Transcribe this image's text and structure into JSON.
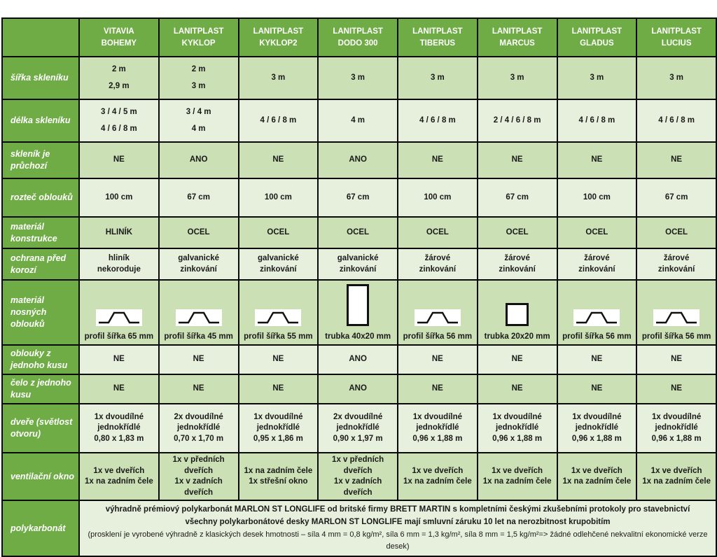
{
  "colors": {
    "header_green": "#6FAC46",
    "row_medium": "#CBE0B4",
    "row_light": "#E7F0DC",
    "border": "#0a0a0a",
    "text": "#1a1a1a"
  },
  "table": {
    "columns": [
      {
        "line1": "VITAVIA",
        "line2": "BOHEMY"
      },
      {
        "line1": "LANITPLAST",
        "line2": "KYKLOP"
      },
      {
        "line1": "LANITPLAST",
        "line2": "KYKLOP2"
      },
      {
        "line1": "LANITPLAST",
        "line2": "DODO 300"
      },
      {
        "line1": "LANITPLAST",
        "line2": "TIBERUS"
      },
      {
        "line1": "LANITPLAST",
        "line2": "MARCUS"
      },
      {
        "line1": "LANITPLAST",
        "line2": "GLADUS"
      },
      {
        "line1": "LANITPLAST",
        "line2": "LUCIUS"
      }
    ],
    "rows": [
      {
        "id": "sirka",
        "label": "šířka skleníku",
        "shade": "medium",
        "spread": true,
        "cells": [
          [
            "2 m",
            "2,9 m"
          ],
          [
            "2 m",
            "3 m"
          ],
          [
            "3 m"
          ],
          [
            "3 m"
          ],
          [
            "3 m"
          ],
          [
            "3 m"
          ],
          [
            "3 m"
          ],
          [
            "3 m"
          ]
        ]
      },
      {
        "id": "delka",
        "label": "délka skleníku",
        "shade": "light",
        "spread": true,
        "cells": [
          [
            "3 / 4 / 5 m",
            "4 / 6 / 8 m"
          ],
          [
            "3 / 4 m",
            "4 m"
          ],
          [
            "4 / 6 / 8 m"
          ],
          [
            "4 m"
          ],
          [
            "4 / 6 / 8 m"
          ],
          [
            "2 / 4 / 6 / 8 m"
          ],
          [
            "4 / 6 / 8 m"
          ],
          [
            "4 / 6 / 8 m"
          ]
        ]
      },
      {
        "id": "pruchozi",
        "label": "skleník je průchozí",
        "shade": "medium",
        "cells": [
          [
            "NE"
          ],
          [
            "ANO"
          ],
          [
            "NE"
          ],
          [
            "ANO"
          ],
          [
            "NE"
          ],
          [
            "NE"
          ],
          [
            "NE"
          ],
          [
            "NE"
          ]
        ]
      },
      {
        "id": "roztec",
        "label": "rozteč oblouků",
        "shade": "light",
        "cells": [
          [
            "100 cm"
          ],
          [
            "67 cm"
          ],
          [
            "100 cm"
          ],
          [
            "67 cm"
          ],
          [
            "100 cm"
          ],
          [
            "67 cm"
          ],
          [
            "100 cm"
          ],
          [
            "67 cm"
          ]
        ]
      },
      {
        "id": "konstrukce",
        "label": "materiál konstrukce",
        "shade": "medium",
        "cells": [
          [
            "HLINÍK"
          ],
          [
            "OCEL"
          ],
          [
            "OCEL"
          ],
          [
            "OCEL"
          ],
          [
            "OCEL"
          ],
          [
            "OCEL"
          ],
          [
            "OCEL"
          ],
          [
            "OCEL"
          ]
        ]
      },
      {
        "id": "ochrana",
        "label": "ochrana před korozí",
        "shade": "light",
        "cells": [
          [
            "hliník",
            "nekoroduje"
          ],
          [
            "galvanické",
            "zinkování"
          ],
          [
            "galvanické",
            "zinkování"
          ],
          [
            "galvanické",
            "zinkování"
          ],
          [
            "žárové",
            "zinkování"
          ],
          [
            "žárové",
            "zinkování"
          ],
          [
            "žárové",
            "zinkování"
          ],
          [
            "žárové",
            "zinkování"
          ]
        ]
      },
      {
        "id": "nosne",
        "label": "materiál nosných oblouků",
        "shade": "medium",
        "profile": true,
        "cells": [
          {
            "icon": "omega-profile-icon",
            "caption": "profil šířka 65 mm"
          },
          {
            "icon": "omega-profile-icon",
            "caption": "profil šířka 45 mm"
          },
          {
            "icon": "omega-profile-icon",
            "caption": "profil šířka 55 mm"
          },
          {
            "icon": "tube-tall-icon",
            "caption": "trubka 40x20 mm"
          },
          {
            "icon": "omega-profile-icon",
            "caption": "profil šířka 56 mm"
          },
          {
            "icon": "tube-square-icon",
            "caption": "trubka 20x20 mm"
          },
          {
            "icon": "omega-profile-icon",
            "caption": "profil šířka 56 mm"
          },
          {
            "icon": "omega-profile-icon",
            "caption": "profil šířka 56 mm"
          }
        ]
      },
      {
        "id": "oblouky",
        "label": "oblouky z jednoho kusu",
        "shade": "light",
        "cells": [
          [
            "NE"
          ],
          [
            "NE"
          ],
          [
            "NE"
          ],
          [
            "ANO"
          ],
          [
            "NE"
          ],
          [
            "NE"
          ],
          [
            "NE"
          ],
          [
            "NE"
          ]
        ]
      },
      {
        "id": "celo",
        "label": "čelo z jednoho kusu",
        "shade": "medium",
        "cells": [
          [
            "NE"
          ],
          [
            "NE"
          ],
          [
            "NE"
          ],
          [
            "ANO"
          ],
          [
            "NE"
          ],
          [
            "NE"
          ],
          [
            "NE"
          ],
          [
            "NE"
          ]
        ]
      },
      {
        "id": "dvere",
        "label": "dveře (světlost otvoru)",
        "shade": "light",
        "cells": [
          [
            "1x dvoudílné",
            "jednokřídlé",
            "0,80 x 1,83 m"
          ],
          [
            "2x dvoudílné",
            "jednokřídlé",
            "0,70 x 1,70 m"
          ],
          [
            "1x dvoudílné",
            "jednokřídlé",
            "0,95 x 1,86 m"
          ],
          [
            "2x dvoudílné",
            "jednokřídlé",
            "0,90 x 1,97 m"
          ],
          [
            "1x dvoudílné",
            "jednokřídlé",
            "0,96 x 1,88 m"
          ],
          [
            "1x dvoudílné",
            "jednokřídlé",
            "0,96 x 1,88 m"
          ],
          [
            "1x dvoudílné",
            "jednokřídlé",
            "0,96 x 1,88 m"
          ],
          [
            "1x dvoudílné",
            "jednokřídlé",
            "0,96 x 1,88 m"
          ]
        ]
      },
      {
        "id": "ventilace",
        "label": "ventilační okno",
        "shade": "medium",
        "cells": [
          [
            "1x ve dveřích",
            "1x na zadním čele"
          ],
          [
            "1x v předních dveřích",
            "1x v zadních dveřích"
          ],
          [
            "1x na zadním čele",
            "1x střešní okno"
          ],
          [
            "1x v předních dveřích",
            "1x v zadních dveřích"
          ],
          [
            "1x ve dveřích",
            "1x na zadním čele"
          ],
          [
            "1x ve dveřích",
            "1x na zadním čele"
          ],
          [
            "1x ve dveřích",
            "1x na zadním čele"
          ],
          [
            "1x ve dveřích",
            "1x na zadním čele"
          ]
        ]
      }
    ],
    "polycarbonate": {
      "label": "polykarbonát",
      "line1": "výhradně prémiový polykarbonát MARLON ST LONGLIFE od britské firmy BRETT MARTIN s kompletními českými zkušebními protokoly pro stavebnictví",
      "line2": "všechny polykarbonátové desky MARLON ST LONGLIFE mají smluvní záruku 10 let na nerozbitnost krupobitím",
      "line3": "(prosklení je vyrobené výhradně z klasických desek hmotnosti – síla 4 mm = 0,8 kg/m², síla 6 mm = 1,3 kg/m², síla 8 mm = 1,5 kg/m²=> žádné odlehčené nekvalitní ekonomické verze desek)"
    }
  }
}
